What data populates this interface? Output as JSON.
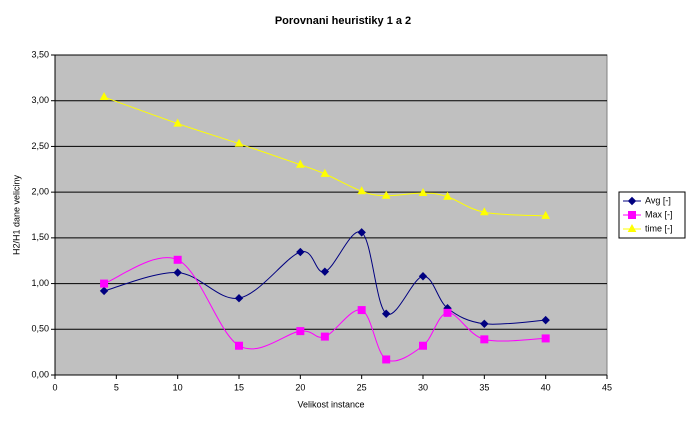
{
  "chart_data": {
    "type": "line",
    "title": "Porovnani heuristiky 1 a 2",
    "x_label": "Velikost instance",
    "y_label": "H2/H1 dane veliciny",
    "x": [
      4,
      10,
      15,
      20,
      22,
      25,
      27,
      30,
      32,
      35,
      40
    ],
    "series": [
      {
        "name": "Avg [-]",
        "color": "#000080",
        "marker": "diamond",
        "values": [
          0.92,
          1.12,
          0.84,
          1.345,
          1.13,
          1.56,
          0.67,
          1.08,
          0.73,
          0.56,
          0.6
        ]
      },
      {
        "name": "Max [-]",
        "color": "#ff00ff",
        "marker": "square",
        "values": [
          1.0,
          1.26,
          0.32,
          0.48,
          0.42,
          0.71,
          0.17,
          0.32,
          0.68,
          0.39,
          0.4
        ]
      },
      {
        "name": "time [-]",
        "color": "#ffff00",
        "marker": "triangle",
        "values": [
          3.04,
          2.75,
          2.53,
          2.3,
          2.2,
          2.01,
          1.96,
          1.99,
          1.95,
          1.78,
          1.74
        ]
      }
    ],
    "xlim": [
      0,
      45
    ],
    "xticks": [
      0,
      5,
      10,
      15,
      20,
      25,
      30,
      35,
      40,
      45
    ],
    "ylim": [
      0,
      3.5
    ],
    "yticks": [
      {
        "value": 0,
        "label": "0,00"
      },
      {
        "value": 0.5,
        "label": "0,50"
      },
      {
        "value": 1,
        "label": "1,00"
      },
      {
        "value": 1.5,
        "label": "1,50"
      },
      {
        "value": 2,
        "label": "2,00"
      },
      {
        "value": 2.5,
        "label": "2,50"
      },
      {
        "value": 3,
        "label": "3,00"
      },
      {
        "value": 3.5,
        "label": "3,50"
      }
    ],
    "grid": true,
    "smooth": true,
    "legend": "right"
  }
}
